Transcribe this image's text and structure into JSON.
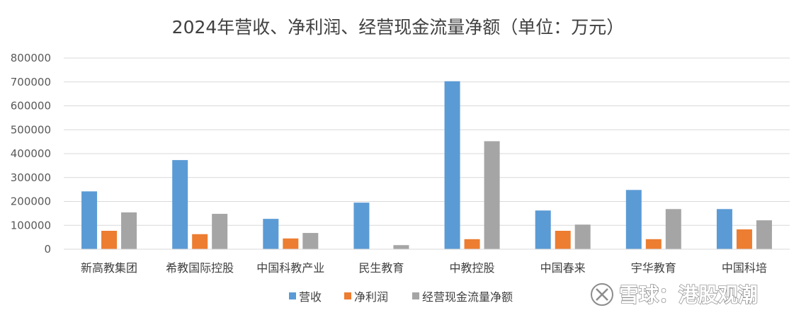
{
  "chart_data": {
    "type": "bar",
    "title": "2024年营收、净利润、经营现金流量净额（单位：万元）",
    "categories": [
      "新高教集团",
      "希教国际控股",
      "中国科教产业",
      "民生教育",
      "中教控股",
      "中国春来",
      "宇华教育",
      "中国科培"
    ],
    "series": [
      {
        "name": "营收",
        "color": "#5b9bd5",
        "values": [
          242000,
          373000,
          127000,
          195000,
          703000,
          162000,
          248000,
          168000
        ]
      },
      {
        "name": "净利润",
        "color": "#ed7d31",
        "values": [
          77000,
          63000,
          45000,
          0,
          42000,
          77000,
          42000,
          83000
        ]
      },
      {
        "name": "经营现金流量净额",
        "color": "#a5a5a5",
        "values": [
          154000,
          148000,
          68000,
          17000,
          452000,
          103000,
          168000,
          121000
        ]
      }
    ],
    "ylim": [
      0,
      800000
    ],
    "yticks": [
      "0",
      "100000",
      "200000",
      "300000",
      "400000",
      "500000",
      "600000",
      "700000",
      "800000"
    ],
    "grid": true,
    "legend_position": "bottom"
  },
  "watermark": {
    "text": "雪球：港股观潮",
    "logo_icon": "snowball-logo-icon"
  }
}
